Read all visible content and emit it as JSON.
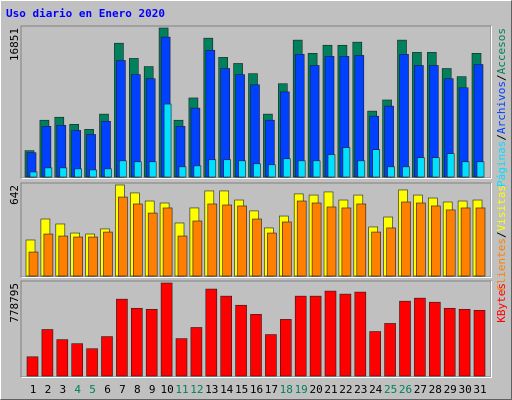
{
  "chart_data": [
    {
      "type": "bar",
      "title": "Uso diario en Enero 2020",
      "ylim": [
        0,
        16851
      ],
      "yticks": [
        16851
      ],
      "legend_separator": "/",
      "series": [
        {
          "name": "Accesos",
          "color": "#00805c",
          "values": [
            2980,
            6420,
            6760,
            5960,
            5390,
            7110,
            15130,
            13410,
            12490,
            16851,
            6420,
            8940,
            15700,
            13530,
            12840,
            11690,
            7110,
            10550,
            15480,
            13990,
            14900,
            14900,
            15250,
            7450,
            8710,
            15480,
            14100,
            14100,
            12270,
            11350,
            13990
          ]
        },
        {
          "name": "Archivos",
          "color": "#0040ff",
          "values": [
            2750,
            5730,
            5850,
            5270,
            4810,
            6300,
            13180,
            11580,
            11120,
            15820,
            5730,
            7790,
            14330,
            12270,
            11580,
            10430,
            6420,
            9630,
            13870,
            12610,
            13640,
            13640,
            13750,
            6880,
            8020,
            13870,
            12610,
            12610,
            11120,
            10090,
            12720
          ]
        },
        {
          "name": "Páginas",
          "color": "#00e0ff",
          "values": [
            570,
            1030,
            1030,
            920,
            800,
            920,
            1830,
            1720,
            1720,
            8250,
            1150,
            1260,
            1950,
            1950,
            1830,
            1490,
            1380,
            2060,
            1830,
            1830,
            2520,
            3320,
            1830,
            3090,
            1150,
            1150,
            2180,
            2180,
            2640,
            1720,
            1720
          ]
        }
      ]
    },
    {
      "type": "bar",
      "ylim": [
        0,
        642
      ],
      "yticks": [
        642
      ],
      "legend_separator": "/",
      "series": [
        {
          "name": "Visitas",
          "color": "#ffff00",
          "values": [
            254,
            402,
            367,
            303,
            296,
            332,
            642,
            586,
            529,
            515,
            374,
            480,
            600,
            600,
            536,
            459,
            339,
            423,
            579,
            571,
            593,
            536,
            571,
            346,
            416,
            607,
            571,
            550,
            522,
            529,
            536
          ]
        },
        {
          "name": "Clientes",
          "color": "#ff8000",
          "values": [
            169,
            296,
            282,
            275,
            275,
            310,
            557,
            508,
            444,
            480,
            282,
            388,
            508,
            501,
            494,
            402,
            303,
            381,
            529,
            515,
            487,
            480,
            508,
            310,
            339,
            522,
            515,
            494,
            466,
            480,
            480
          ]
        }
      ]
    },
    {
      "type": "bar",
      "ylim": [
        0,
        778795
      ],
      "yticks": [
        778795
      ],
      "categories": [
        "1",
        "2",
        "3",
        "4",
        "5",
        "6",
        "7",
        "8",
        "9",
        "10",
        "11",
        "12",
        "13",
        "14",
        "15",
        "16",
        "17",
        "18",
        "19",
        "20",
        "21",
        "22",
        "23",
        "24",
        "25",
        "26",
        "27",
        "28",
        "29",
        "30",
        "31"
      ],
      "category_colors": [
        "#000000",
        "#000000",
        "#000000",
        "#00805c",
        "#00805c",
        "#000000",
        "#000000",
        "#000000",
        "#000000",
        "#000000",
        "#00805c",
        "#00805c",
        "#000000",
        "#000000",
        "#000000",
        "#000000",
        "#000000",
        "#00805c",
        "#00805c",
        "#000000",
        "#000000",
        "#000000",
        "#000000",
        "#000000",
        "#00805c",
        "#00805c",
        "#000000",
        "#000000",
        "#000000",
        "#000000",
        "#000000"
      ],
      "series": [
        {
          "name": "KBytes",
          "color": "#ff0000",
          "values": [
            160840,
            389400,
            304740,
            270880,
            228560,
            330140,
            643340,
            567160,
            558690,
            778795,
            313210,
            406320,
            728000,
            668740,
            592550,
            516370,
            347070,
            474040,
            668740,
            668740,
            711060,
            685670,
            702600,
            372460,
            440180,
            626410,
            651810,
            617950,
            567160,
            558690,
            550230
          ]
        }
      ]
    }
  ]
}
